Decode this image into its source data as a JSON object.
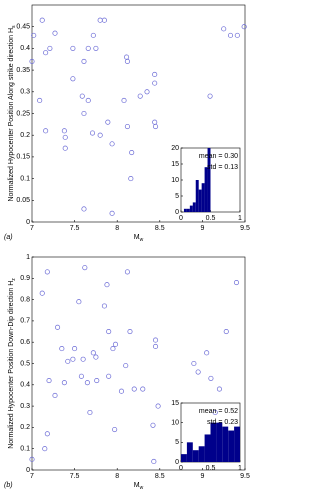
{
  "chart_data": [
    {
      "type": "scatter",
      "panel_label": "(a)",
      "xlabel": "M",
      "xlabel_sub": "w",
      "ylabel": "Normalized Hypocenter Position Along strike direction H",
      "ylabel_sub": "s",
      "color": "#6b6bd6",
      "xlim": [
        7,
        9.5
      ],
      "xticks": [
        7,
        7.5,
        8,
        8.5,
        9,
        9.5
      ],
      "ylim": [
        0,
        0.5
      ],
      "yticks": [
        0,
        0.05,
        0.1,
        0.15,
        0.2,
        0.25,
        0.3,
        0.35,
        0.4,
        0.45
      ],
      "x": [
        7.0,
        7.02,
        7.12,
        7.16,
        7.21,
        7.27,
        7.09,
        7.16,
        7.38,
        7.39,
        7.39,
        7.48,
        7.48,
        7.66,
        7.72,
        7.85,
        7.8,
        7.75,
        7.61,
        7.59,
        7.66,
        7.61,
        7.61,
        7.71,
        7.8,
        7.89,
        7.94,
        7.94,
        8.11,
        8.12,
        8.08,
        8.12,
        8.16,
        8.17,
        8.27,
        8.35,
        8.44,
        8.44,
        8.44,
        8.45,
        9.09,
        9.25,
        9.33,
        9.41,
        9.49
      ],
      "values": [
        0.37,
        0.43,
        0.465,
        0.39,
        0.4,
        0.435,
        0.28,
        0.21,
        0.21,
        0.195,
        0.17,
        0.33,
        0.4,
        0.4,
        0.43,
        0.465,
        0.465,
        0.4,
        0.37,
        0.29,
        0.28,
        0.25,
        0.03,
        0.205,
        0.2,
        0.23,
        0.18,
        0.02,
        0.38,
        0.37,
        0.28,
        0.22,
        0.1,
        0.16,
        0.29,
        0.3,
        0.34,
        0.32,
        0.23,
        0.22,
        0.29,
        0.445,
        0.43,
        0.43,
        0.45
      ]
    },
    {
      "type": "histogram",
      "color": "#00008b",
      "bins": [
        0.05,
        0.1,
        0.15,
        0.2,
        0.25,
        0.3,
        0.35,
        0.4,
        0.45,
        0.5
      ],
      "values": [
        1,
        1,
        2,
        3,
        10,
        7,
        9,
        14,
        20
      ],
      "xlim": [
        0,
        1
      ],
      "xticks": [
        0,
        0.5,
        1
      ],
      "ylim": [
        0,
        20
      ],
      "yticks": [
        0,
        5,
        10,
        15,
        20
      ],
      "annotations": [
        "mean = 0.30",
        "std = 0.13"
      ]
    },
    {
      "type": "scatter",
      "panel_label": "(b)",
      "xlabel": "M",
      "xlabel_sub": "w",
      "ylabel": "Normalized Hypocenter Position Down-Dip direction H",
      "ylabel_sub": "z",
      "color": "#6b6bd6",
      "xlim": [
        7,
        9.5
      ],
      "xticks": [
        7,
        7.5,
        8,
        8.5,
        9,
        9.5
      ],
      "ylim": [
        0,
        1
      ],
      "yticks": [
        0,
        0.1,
        0.2,
        0.3,
        0.4,
        0.5,
        0.6,
        0.7,
        0.8,
        0.9,
        1
      ],
      "x": [
        7.0,
        7.12,
        7.18,
        7.2,
        7.15,
        7.18,
        7.27,
        7.3,
        7.35,
        7.38,
        7.42,
        7.48,
        7.5,
        7.55,
        7.58,
        7.6,
        7.62,
        7.65,
        7.68,
        7.72,
        7.75,
        7.76,
        7.85,
        7.88,
        7.9,
        7.9,
        7.95,
        7.98,
        7.97,
        8.05,
        8.12,
        8.15,
        8.1,
        8.2,
        8.3,
        8.45,
        8.45,
        8.48,
        8.42,
        8.43,
        8.9,
        8.95,
        9.05,
        9.1,
        9.15,
        9.2,
        9.28,
        9.4
      ],
      "values": [
        0.05,
        0.83,
        0.93,
        0.42,
        0.1,
        0.17,
        0.35,
        0.67,
        0.57,
        0.41,
        0.51,
        0.52,
        0.57,
        0.79,
        0.44,
        0.52,
        0.95,
        0.41,
        0.27,
        0.55,
        0.53,
        0.42,
        0.77,
        0.87,
        0.65,
        0.44,
        0.57,
        0.59,
        0.19,
        0.37,
        0.93,
        0.65,
        0.49,
        0.38,
        0.38,
        0.61,
        0.58,
        0.3,
        0.21,
        0.04,
        0.5,
        0.46,
        0.55,
        0.43,
        0.27,
        0.38,
        0.65,
        0.88
      ]
    },
    {
      "type": "histogram",
      "color": "#00008b",
      "bins": [
        0,
        0.1,
        0.2,
        0.3,
        0.4,
        0.5,
        0.6,
        0.7,
        0.8,
        0.9,
        1
      ],
      "values": [
        2,
        5,
        3,
        4,
        7,
        10,
        10,
        9,
        8,
        9
      ],
      "xlim": [
        0,
        1
      ],
      "xticks": [
        0,
        0.5,
        1
      ],
      "ylim": [
        0,
        15
      ],
      "yticks": [
        0,
        5,
        10,
        15
      ],
      "annotations": [
        "mean = 0.52",
        "std = 0.23"
      ]
    }
  ]
}
